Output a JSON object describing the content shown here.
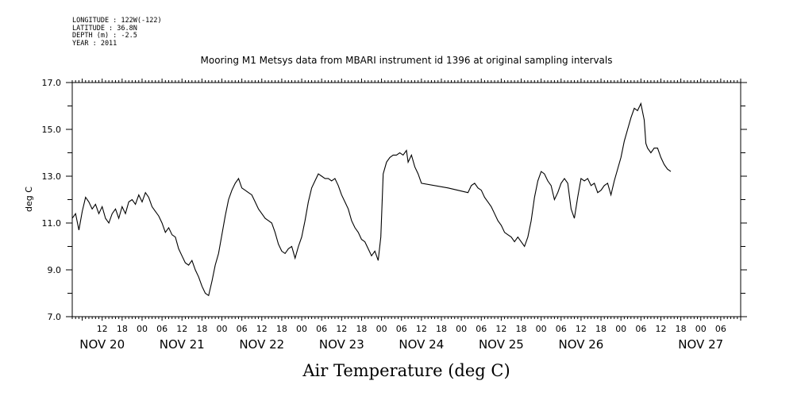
{
  "header": {
    "longitude": "LONGITUDE : 122W(-122)",
    "latitude": "LATITUDE : 36.8N",
    "depth": "DEPTH (m) : -2.5",
    "year": "YEAR : 2011"
  },
  "chart_data": {
    "type": "line",
    "title": "Mooring M1 Metsys data from MBARI instrument id 1396 at original sampling intervals",
    "ylabel": "deg C",
    "caption": "Air Temperature (deg C)",
    "ylim": [
      7.0,
      17.0
    ],
    "yticks": [
      "7.0",
      "9.0",
      "11.0",
      "13.0",
      "15.0",
      "17.0"
    ],
    "xlim_hours": [
      -33,
      168
    ],
    "hour_ticks": [
      {
        "hour": -24,
        "label": "12"
      },
      {
        "hour": -18,
        "label": "18"
      },
      {
        "hour": -12,
        "label": "00"
      },
      {
        "hour": -6,
        "label": "06"
      },
      {
        "hour": 0,
        "label": "12"
      },
      {
        "hour": 6,
        "label": "18"
      },
      {
        "hour": 12,
        "label": "00"
      },
      {
        "hour": 18,
        "label": "06"
      },
      {
        "hour": 24,
        "label": "12"
      },
      {
        "hour": 30,
        "label": "18"
      },
      {
        "hour": 36,
        "label": "00"
      },
      {
        "hour": 42,
        "label": "06"
      },
      {
        "hour": 48,
        "label": "12"
      },
      {
        "hour": 54,
        "label": "18"
      },
      {
        "hour": 60,
        "label": "00"
      },
      {
        "hour": 66,
        "label": "06"
      },
      {
        "hour": 72,
        "label": "12"
      },
      {
        "hour": 78,
        "label": "18"
      },
      {
        "hour": 84,
        "label": "00"
      },
      {
        "hour": 90,
        "label": "06"
      },
      {
        "hour": 96,
        "label": "12"
      },
      {
        "hour": 102,
        "label": "18"
      },
      {
        "hour": 108,
        "label": "00"
      },
      {
        "hour": 114,
        "label": "06"
      },
      {
        "hour": 120,
        "label": "12"
      },
      {
        "hour": 126,
        "label": "18"
      },
      {
        "hour": 132,
        "label": "00"
      },
      {
        "hour": 138,
        "label": "06"
      },
      {
        "hour": 144,
        "label": "12"
      },
      {
        "hour": 150,
        "label": "18"
      },
      {
        "hour": 156,
        "label": "00"
      },
      {
        "hour": 162,
        "label": "06"
      }
    ],
    "date_labels": [
      {
        "hour": -24,
        "label": "NOV 20"
      },
      {
        "hour": 0,
        "label": "NOV 21"
      },
      {
        "hour": 24,
        "label": "NOV 22"
      },
      {
        "hour": 48,
        "label": "NOV 23"
      },
      {
        "hour": 72,
        "label": "NOV 24"
      },
      {
        "hour": 96,
        "label": "NOV 25"
      },
      {
        "hour": 120,
        "label": "NOV 26"
      },
      {
        "hour": 156,
        "label": "NOV 27"
      }
    ],
    "series": [
      {
        "points": [
          [
            -33,
            11.2
          ],
          [
            -32,
            11.4
          ],
          [
            -31,
            10.7
          ],
          [
            -30,
            11.5
          ],
          [
            -29,
            12.1
          ],
          [
            -28,
            11.9
          ],
          [
            -27,
            11.6
          ],
          [
            -26,
            11.8
          ],
          [
            -25,
            11.4
          ],
          [
            -24,
            11.7
          ],
          [
            -23,
            11.2
          ],
          [
            -22,
            11.0
          ],
          [
            -21,
            11.4
          ],
          [
            -20,
            11.6
          ],
          [
            -19,
            11.2
          ],
          [
            -18,
            11.7
          ],
          [
            -17,
            11.4
          ],
          [
            -16,
            11.9
          ],
          [
            -15,
            12.0
          ],
          [
            -14,
            11.8
          ],
          [
            -13,
            12.2
          ],
          [
            -12,
            11.9
          ],
          [
            -11,
            12.3
          ],
          [
            -10,
            12.1
          ],
          [
            -9,
            11.7
          ],
          [
            -8,
            11.5
          ],
          [
            -7,
            11.3
          ],
          [
            -6,
            11.0
          ],
          [
            -5,
            10.6
          ],
          [
            -4,
            10.8
          ],
          [
            -3,
            10.5
          ],
          [
            -2,
            10.4
          ],
          [
            -1,
            9.9
          ],
          [
            0,
            9.6
          ],
          [
            1,
            9.3
          ],
          [
            2,
            9.2
          ],
          [
            3,
            9.4
          ],
          [
            4,
            9.0
          ],
          [
            5,
            8.7
          ],
          [
            6,
            8.3
          ],
          [
            7,
            8.0
          ],
          [
            8,
            7.9
          ],
          [
            9,
            8.5
          ],
          [
            10,
            9.2
          ],
          [
            11,
            9.7
          ],
          [
            12,
            10.5
          ],
          [
            13,
            11.3
          ],
          [
            14,
            12.0
          ],
          [
            15,
            12.4
          ],
          [
            16,
            12.7
          ],
          [
            17,
            12.9
          ],
          [
            18,
            12.5
          ],
          [
            19,
            12.4
          ],
          [
            20,
            12.3
          ],
          [
            21,
            12.2
          ],
          [
            22,
            11.9
          ],
          [
            23,
            11.6
          ],
          [
            24,
            11.4
          ],
          [
            25,
            11.2
          ],
          [
            26,
            11.1
          ],
          [
            27,
            11.0
          ],
          [
            28,
            10.6
          ],
          [
            29,
            10.1
          ],
          [
            30,
            9.8
          ],
          [
            31,
            9.7
          ],
          [
            32,
            9.9
          ],
          [
            33,
            10.0
          ],
          [
            34,
            9.5
          ],
          [
            35,
            10.0
          ],
          [
            36,
            10.4
          ],
          [
            37,
            11.1
          ],
          [
            38,
            11.9
          ],
          [
            39,
            12.5
          ],
          [
            40,
            12.8
          ],
          [
            41,
            13.1
          ],
          [
            42,
            13.0
          ],
          [
            43,
            12.9
          ],
          [
            44,
            12.9
          ],
          [
            45,
            12.8
          ],
          [
            46,
            12.9
          ],
          [
            47,
            12.6
          ],
          [
            48,
            12.2
          ],
          [
            49,
            11.9
          ],
          [
            50,
            11.6
          ],
          [
            51,
            11.1
          ],
          [
            52,
            10.8
          ],
          [
            53,
            10.6
          ],
          [
            54,
            10.3
          ],
          [
            55,
            10.2
          ],
          [
            56,
            9.9
          ],
          [
            57,
            9.6
          ],
          [
            58,
            9.8
          ],
          [
            59,
            9.4
          ],
          [
            59.8,
            10.4
          ],
          [
            60.5,
            13.1
          ],
          [
            61.5,
            13.6
          ],
          [
            62.5,
            13.8
          ],
          [
            63.5,
            13.9
          ],
          [
            64.5,
            13.9
          ],
          [
            65.5,
            14.0
          ],
          [
            66.5,
            13.9
          ],
          [
            67.5,
            14.1
          ],
          [
            68,
            13.6
          ],
          [
            69,
            13.9
          ],
          [
            70,
            13.4
          ],
          [
            71,
            13.1
          ],
          [
            72,
            12.7
          ],
          [
            80,
            12.5
          ],
          [
            86,
            12.3
          ],
          [
            87,
            12.6
          ],
          [
            88,
            12.7
          ],
          [
            89,
            12.5
          ],
          [
            90,
            12.4
          ],
          [
            91,
            12.1
          ],
          [
            92,
            11.9
          ],
          [
            93,
            11.7
          ],
          [
            94,
            11.4
          ],
          [
            95,
            11.1
          ],
          [
            96,
            10.9
          ],
          [
            97,
            10.6
          ],
          [
            98,
            10.5
          ],
          [
            99,
            10.4
          ],
          [
            100,
            10.2
          ],
          [
            101,
            10.4
          ],
          [
            102,
            10.2
          ],
          [
            103,
            10.0
          ],
          [
            104,
            10.4
          ],
          [
            105,
            11.1
          ],
          [
            106,
            12.1
          ],
          [
            107,
            12.8
          ],
          [
            108,
            13.2
          ],
          [
            109,
            13.1
          ],
          [
            110,
            12.8
          ],
          [
            111,
            12.6
          ],
          [
            112,
            12.0
          ],
          [
            113,
            12.3
          ],
          [
            114,
            12.7
          ],
          [
            115,
            12.9
          ],
          [
            116,
            12.7
          ],
          [
            117,
            11.6
          ],
          [
            118,
            11.2
          ],
          [
            119,
            12.1
          ],
          [
            120,
            12.9
          ],
          [
            121,
            12.8
          ],
          [
            122,
            12.9
          ],
          [
            123,
            12.6
          ],
          [
            124,
            12.7
          ],
          [
            125,
            12.3
          ],
          [
            126,
            12.4
          ],
          [
            127,
            12.6
          ],
          [
            128,
            12.7
          ],
          [
            129,
            12.2
          ],
          [
            130,
            12.8
          ],
          [
            131,
            13.3
          ],
          [
            132,
            13.8
          ],
          [
            133,
            14.5
          ],
          [
            134,
            15.0
          ],
          [
            135,
            15.5
          ],
          [
            136,
            15.9
          ],
          [
            137,
            15.8
          ],
          [
            138,
            16.1
          ],
          [
            139,
            15.4
          ],
          [
            139.5,
            14.4
          ],
          [
            140,
            14.2
          ],
          [
            141,
            14.0
          ],
          [
            142,
            14.2
          ],
          [
            143,
            14.2
          ],
          [
            144,
            13.8
          ],
          [
            145,
            13.5
          ],
          [
            146,
            13.3
          ],
          [
            147,
            13.2
          ]
        ]
      }
    ]
  }
}
